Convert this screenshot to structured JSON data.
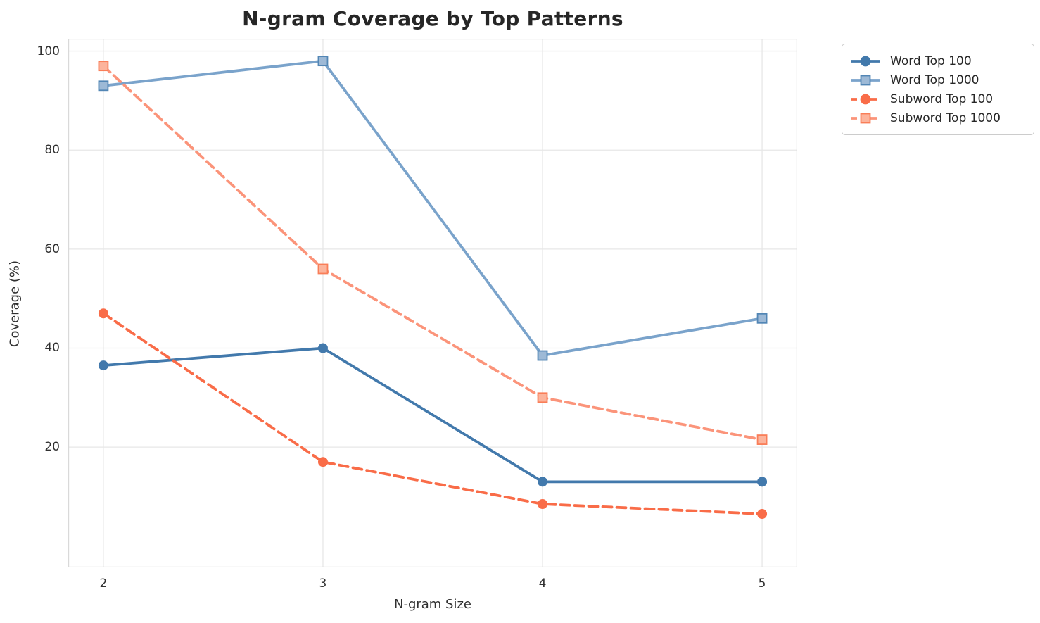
{
  "chart_data": {
    "type": "line",
    "title": "N-gram Coverage by Top Patterns",
    "xlabel": "N-gram Size",
    "ylabel": "Coverage (%)",
    "x": [
      2,
      3,
      4,
      5
    ],
    "xticks": [
      "2",
      "3",
      "4",
      "5"
    ],
    "yticks": [
      "20",
      "40",
      "60",
      "80",
      "100"
    ],
    "ytick_values": [
      20,
      40,
      60,
      80,
      100
    ],
    "xlim": [
      1.84,
      5.16
    ],
    "ylim": [
      -4.3,
      102.5
    ],
    "grid": true,
    "legend_position": "outside-top-right",
    "series": [
      {
        "name": "Word Top 100",
        "values": [
          36.5,
          40,
          13,
          13
        ],
        "color": "#4279ac",
        "line_style": "solid",
        "marker": "circle",
        "marker_fill": "#4279ac",
        "marker_edge": "#4279ac"
      },
      {
        "name": "Word Top 1000",
        "values": [
          93,
          98,
          38.5,
          46
        ],
        "color": "#7aa3cb",
        "line_style": "solid",
        "marker": "square",
        "marker_fill": "#9db9d6",
        "marker_edge": "#5286b5"
      },
      {
        "name": "Subword Top 100",
        "values": [
          47,
          17,
          8.5,
          6.5
        ],
        "color": "#f96c48",
        "line_style": "dashed",
        "marker": "circle",
        "marker_fill": "#f96c48",
        "marker_edge": "#f96c48"
      },
      {
        "name": "Subword Top 1000",
        "values": [
          97,
          56,
          30,
          21.5
        ],
        "color": "#fb947a",
        "line_style": "dashed",
        "marker": "square",
        "marker_fill": "#fcb49c",
        "marker_edge": "#f97e58"
      }
    ],
    "colors": {
      "grid": "#e7e7e7",
      "spine": "#d9d9d9",
      "text": "#262626",
      "background": "#ffffff"
    }
  }
}
